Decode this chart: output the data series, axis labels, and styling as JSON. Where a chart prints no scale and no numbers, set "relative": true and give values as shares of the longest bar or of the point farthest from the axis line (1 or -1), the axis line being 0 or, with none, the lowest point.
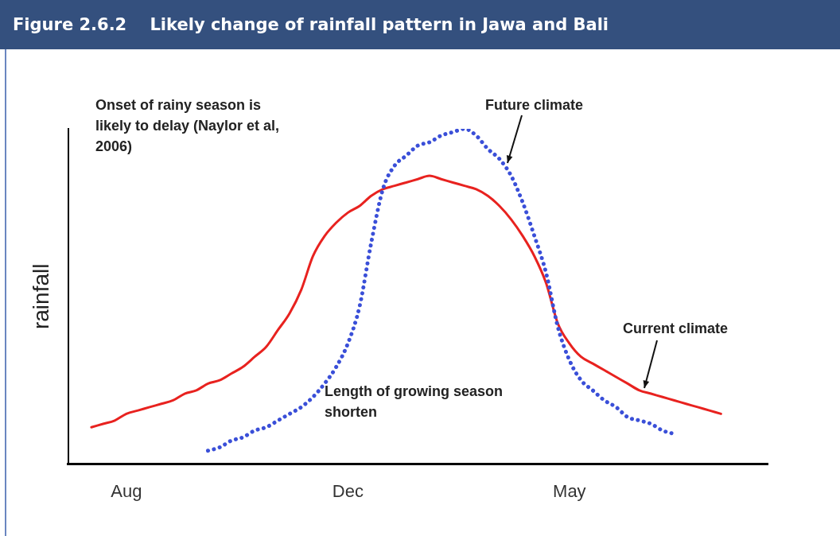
{
  "chart_data": {
    "type": "line",
    "title": "Figure 2.6.2    Likely change of rainfall pattern in Jawa and Bali",
    "ylabel": "rainfall",
    "relative": true,
    "grid": false,
    "legend": false,
    "marker": "none",
    "categories": [
      null,
      null,
      null,
      null,
      null,
      "Aug",
      null,
      null,
      null,
      null,
      null,
      null,
      null,
      null,
      null,
      null,
      null,
      null,
      null,
      null,
      null,
      null,
      null,
      null,
      "Dec",
      null,
      null,
      null,
      null,
      null,
      null,
      null,
      null,
      null,
      null,
      null,
      null,
      null,
      null,
      null,
      null,
      null,
      null,
      "May",
      null,
      null,
      null,
      null,
      null,
      null,
      null,
      null,
      null,
      null,
      null,
      null,
      null,
      null,
      null,
      null,
      null
    ],
    "series": [
      {
        "name": "Future climate",
        "color": "#3a4fd8",
        "line_style": "dotted",
        "values": [
          null,
          null,
          null,
          null,
          null,
          null,
          null,
          null,
          null,
          null,
          null,
          null,
          0.04,
          0.05,
          0.07,
          0.08,
          0.1,
          0.11,
          0.13,
          0.15,
          0.17,
          0.2,
          0.24,
          0.29,
          0.36,
          0.47,
          0.66,
          0.82,
          0.89,
          0.92,
          0.95,
          0.96,
          0.98,
          0.99,
          1.0,
          0.98,
          0.94,
          0.91,
          0.86,
          0.78,
          0.68,
          0.57,
          0.41,
          0.31,
          0.25,
          0.22,
          0.19,
          0.17,
          0.14,
          0.13,
          0.12,
          0.1,
          0.09,
          null,
          null,
          null,
          null,
          null,
          null,
          null,
          null
        ]
      },
      {
        "name": "Current climate",
        "color": "#e8221f",
        "line_style": "solid",
        "values": [
          null,
          null,
          0.11,
          0.12,
          0.13,
          0.15,
          0.16,
          0.17,
          0.18,
          0.19,
          0.21,
          0.22,
          0.24,
          0.25,
          0.27,
          0.29,
          0.32,
          0.35,
          0.4,
          0.45,
          0.52,
          0.62,
          0.68,
          0.72,
          0.75,
          0.77,
          0.8,
          0.82,
          0.83,
          0.84,
          0.85,
          0.86,
          0.85,
          0.84,
          0.83,
          0.82,
          0.8,
          0.77,
          0.73,
          0.68,
          0.62,
          0.54,
          0.42,
          0.36,
          0.32,
          0.3,
          0.28,
          0.26,
          0.24,
          0.22,
          0.21,
          0.2,
          0.19,
          0.18,
          0.17,
          0.16,
          0.15,
          null,
          null,
          null,
          null
        ]
      }
    ],
    "annotations": [
      "Onset of rainy season is likely to delay (Naylor et al, 2006)",
      "Length of growing season shorten"
    ]
  }
}
